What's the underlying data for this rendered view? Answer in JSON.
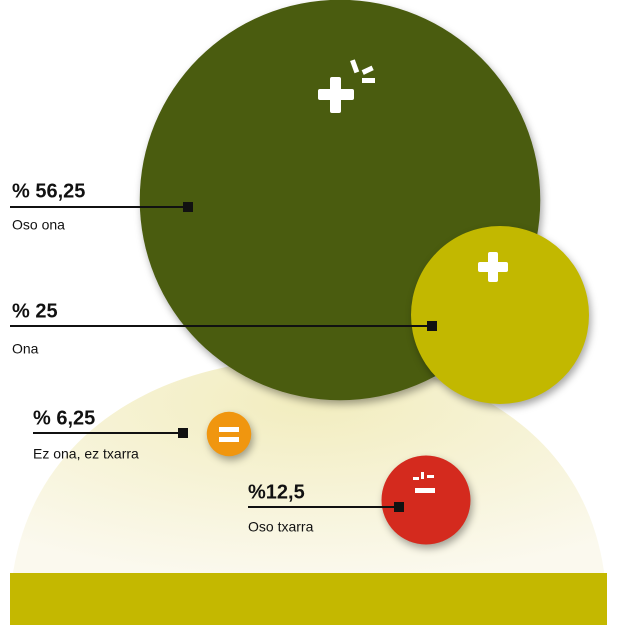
{
  "chart_data": {
    "type": "bubble",
    "categories": [
      "Oso ona",
      "Ona",
      "Ez ona, ez txarra",
      "Oso txarra"
    ],
    "values": [
      56.25,
      25,
      6.25,
      12.5
    ],
    "value_labels": [
      "% 56,25",
      "% 25",
      "% 6,25",
      "%12,5"
    ],
    "colors": [
      "#4a5c0f",
      "#c2b800",
      "#f0960f",
      "#d42a1e"
    ]
  }
}
